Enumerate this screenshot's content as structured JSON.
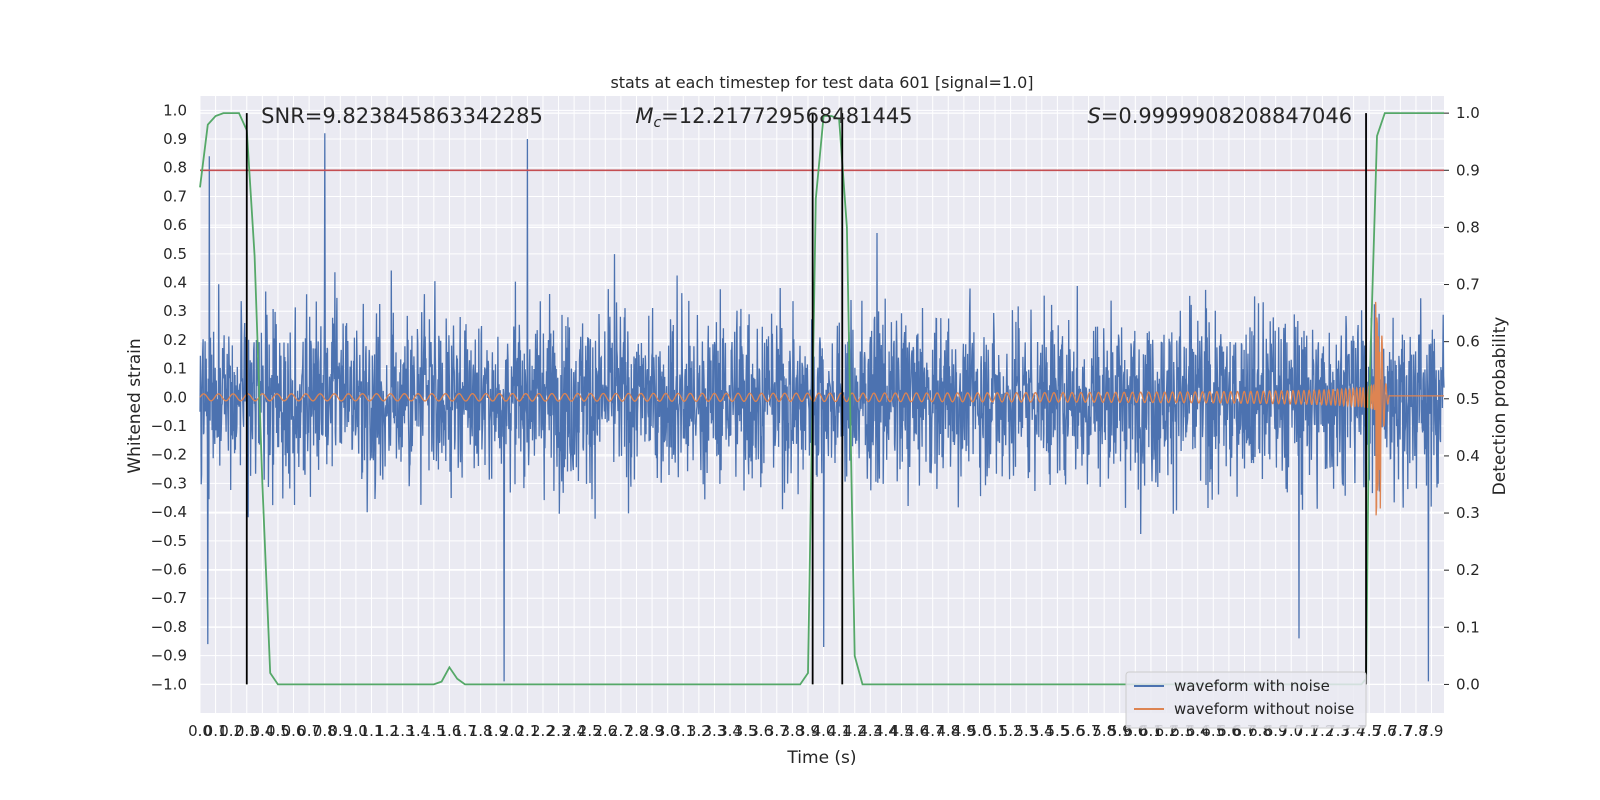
{
  "chart_data": {
    "type": "line",
    "title": "stats at each timestep for test data 601 [signal=1.0]",
    "xlabel": "Time (s)",
    "ylabel": "Whitened strain",
    "y2label": "Detection probability",
    "xlim": [
      0.0,
      7.98
    ],
    "ylim": [
      -1.1,
      1.05
    ],
    "y2lim": [
      -0.05,
      1.03
    ],
    "x_tick_step": 0.1,
    "y_ticks": [
      -1.0,
      -0.9,
      -0.8,
      -0.7,
      -0.6,
      -0.5,
      -0.4,
      -0.3,
      -0.2,
      -0.1,
      0.0,
      0.1,
      0.2,
      0.3,
      0.4,
      0.5,
      0.6,
      0.7,
      0.8,
      0.9,
      1.0
    ],
    "y2_ticks": [
      0.0,
      0.1,
      0.2,
      0.3,
      0.4,
      0.5,
      0.6,
      0.7,
      0.8,
      0.9,
      1.0
    ],
    "grid": true,
    "legend_position": "lower-right",
    "colors": {
      "noise": "#4c72b0",
      "signal": "#dd8452",
      "probability": "#55a868",
      "threshold": "#c44e52",
      "marker": "#000000",
      "background": "#eaeaf2",
      "grid": "#ffffff"
    },
    "annotations": [
      {
        "x": 0.2,
        "text": "SNR=9.823845863342285"
      },
      {
        "x": 2.6,
        "text": "M_c=12.217729568481445"
      },
      {
        "x": 5.5,
        "text": "S=0.9999908208847046"
      }
    ],
    "series": [
      {
        "name": "waveform with noise",
        "kind": "noise",
        "description_values": {
          "amplitude_p10_p90": [
            -0.45,
            0.45
          ],
          "extreme_peaks": [
            [
              0.05,
              -0.86
            ],
            [
              0.06,
              0.84
            ],
            [
              0.8,
              0.92
            ],
            [
              1.95,
              -0.99
            ],
            [
              2.1,
              0.9
            ],
            [
              4.0,
              -0.87
            ],
            [
              7.05,
              -0.84
            ],
            [
              7.88,
              -0.99
            ]
          ]
        }
      },
      {
        "name": "waveform without noise",
        "kind": "chirp",
        "t_merger": 7.57,
        "amplitude_start": 0.012,
        "amplitude_peak": 0.34,
        "trough_peak": -0.45
      }
    ],
    "probability": {
      "x": [
        0.0,
        0.05,
        0.1,
        0.15,
        0.2,
        0.25,
        0.3,
        0.35,
        0.4,
        0.45,
        0.5,
        0.55,
        0.6,
        0.7,
        1.0,
        1.5,
        1.55,
        1.6,
        1.65,
        1.7,
        1.75,
        1.8,
        2.0,
        3.0,
        3.5,
        3.85,
        3.9,
        3.95,
        4.0,
        4.05,
        4.1,
        4.15,
        4.2,
        4.25,
        4.3,
        4.35,
        4.4,
        4.5,
        5.0,
        6.0,
        7.0,
        7.3,
        7.45,
        7.48,
        7.5,
        7.55,
        7.6,
        7.65,
        7.7,
        7.98
      ],
      "y": [
        0.87,
        0.98,
        0.995,
        1.0,
        1.0,
        1.0,
        0.97,
        0.75,
        0.35,
        0.02,
        0.0,
        0.0,
        0.0,
        0.0,
        0.0,
        0.0,
        0.005,
        0.03,
        0.01,
        0.0,
        0.0,
        0.0,
        0.0,
        0.0,
        0.0,
        0.0,
        0.02,
        0.85,
        0.995,
        0.995,
        0.99,
        0.8,
        0.05,
        0.0,
        0.0,
        0.0,
        0.0,
        0.0,
        0.0,
        0.0,
        0.0,
        0.0,
        0.0,
        0.01,
        0.5,
        0.96,
        1.0,
        1.0,
        1.0,
        1.0
      ]
    },
    "threshold": 0.9,
    "markers_x": [
      0.3,
      3.93,
      4.12,
      7.48
    ]
  }
}
